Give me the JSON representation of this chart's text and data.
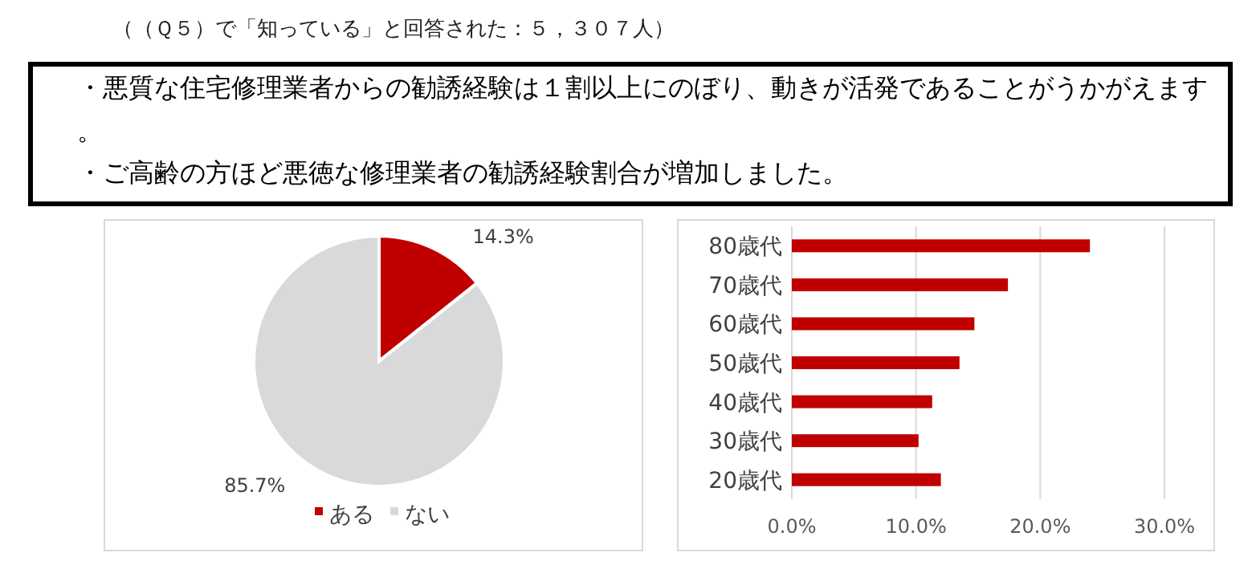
{
  "chart_data": [
    {
      "type": "pie",
      "categories": [
        "ある",
        "ない"
      ],
      "values": [
        14.3,
        85.7
      ],
      "colors": [
        "#c00000",
        "#d9d9d9"
      ],
      "value_labels": [
        "14.3%",
        "85.7%"
      ],
      "legend": "bottom",
      "annotations": [
        "（（Ｑ５）で「知っている」と回答された：５，３０７人）",
        "・悪質な住宅修理業者からの勧誘経験は１割以上にのぼり、動きが活発であることがうかがえます。",
        "・ご高齢の方ほど悪徳な修理業者の勧誘経験割合が増加しました。"
      ]
    },
    {
      "type": "bar",
      "orientation": "horizontal",
      "categories": [
        "80歳代",
        "70歳代",
        "60歳代",
        "50歳代",
        "40歳代",
        "30歳代",
        "20歳代"
      ],
      "series": [
        {
          "color": "#c00000",
          "values": [
            24.0,
            17.4,
            14.7,
            13.5,
            11.3,
            10.2,
            12.0
          ]
        }
      ],
      "xlim": [
        0,
        30
      ],
      "xticks": [
        {
          "value": 0,
          "label": "0.0%"
        },
        {
          "value": 10,
          "label": "10.0%"
        },
        {
          "value": 20,
          "label": "20.0%"
        },
        {
          "value": 30,
          "label": "30.0%"
        }
      ],
      "grid": "x"
    }
  ]
}
